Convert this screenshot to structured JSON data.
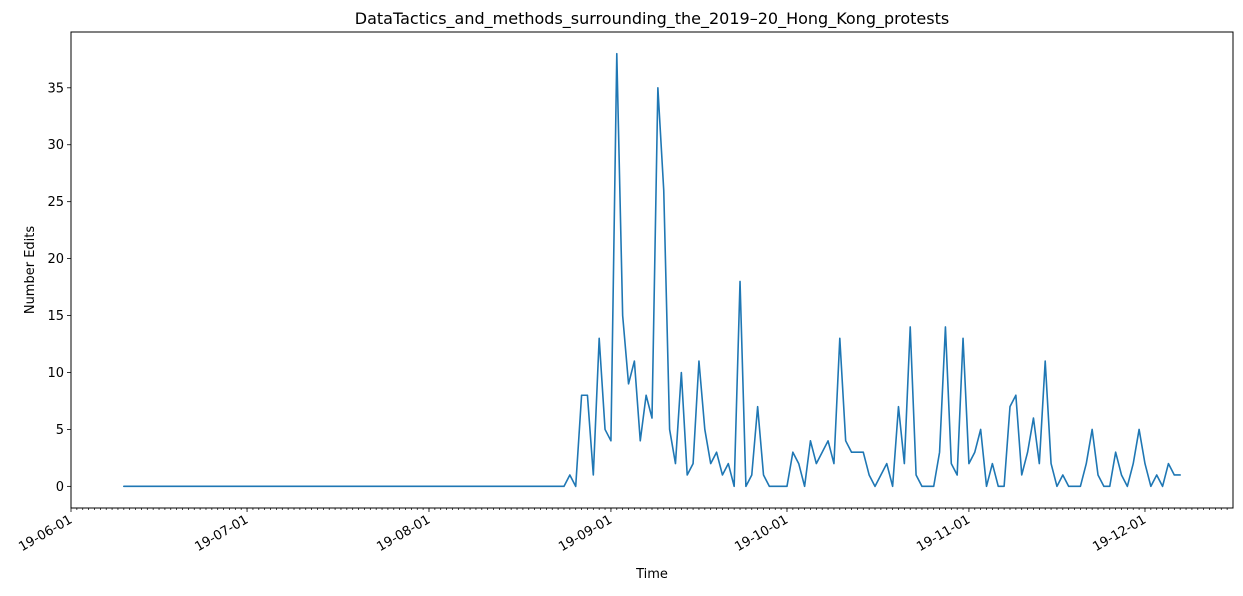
{
  "chart_data": {
    "type": "line",
    "title": "DataTactics_and_methods_surrounding_the_2019–20_Hong_Kong_protests",
    "xlabel": "Time",
    "ylabel": "Number Edits",
    "x_ticks": [
      "19-06-01",
      "19-07-01",
      "19-08-01",
      "19-09-01",
      "19-10-01",
      "19-11-01",
      "19-12-01"
    ],
    "y_ticks": [
      0,
      5,
      10,
      15,
      20,
      25,
      30,
      35
    ],
    "xlim": [
      "2019-06-01",
      "2019-12-16"
    ],
    "ylim": [
      -1.9,
      39.9
    ],
    "grid": false,
    "legend": "none",
    "series": [
      {
        "color": "#1f77b4",
        "points": [
          [
            "2019-06-10",
            0
          ],
          [
            "2019-08-24",
            0
          ],
          [
            "2019-08-25",
            1
          ],
          [
            "2019-08-26",
            0
          ],
          [
            "2019-08-27",
            8
          ],
          [
            "2019-08-28",
            8
          ],
          [
            "2019-08-29",
            1
          ],
          [
            "2019-08-30",
            13
          ],
          [
            "2019-08-31",
            5
          ],
          [
            "2019-09-01",
            4
          ],
          [
            "2019-09-02",
            38
          ],
          [
            "2019-09-03",
            15
          ],
          [
            "2019-09-04",
            9
          ],
          [
            "2019-09-05",
            11
          ],
          [
            "2019-09-06",
            4
          ],
          [
            "2019-09-07",
            8
          ],
          [
            "2019-09-08",
            6
          ],
          [
            "2019-09-09",
            35
          ],
          [
            "2019-09-10",
            26
          ],
          [
            "2019-09-11",
            5
          ],
          [
            "2019-09-12",
            2
          ],
          [
            "2019-09-13",
            10
          ],
          [
            "2019-09-14",
            1
          ],
          [
            "2019-09-15",
            2
          ],
          [
            "2019-09-16",
            11
          ],
          [
            "2019-09-17",
            5
          ],
          [
            "2019-09-18",
            2
          ],
          [
            "2019-09-19",
            3
          ],
          [
            "2019-09-20",
            1
          ],
          [
            "2019-09-21",
            2
          ],
          [
            "2019-09-22",
            0
          ],
          [
            "2019-09-23",
            18
          ],
          [
            "2019-09-24",
            0
          ],
          [
            "2019-09-25",
            1
          ],
          [
            "2019-09-26",
            7
          ],
          [
            "2019-09-27",
            1
          ],
          [
            "2019-09-28",
            0
          ],
          [
            "2019-10-01",
            0
          ],
          [
            "2019-10-02",
            3
          ],
          [
            "2019-10-03",
            2
          ],
          [
            "2019-10-04",
            0
          ],
          [
            "2019-10-05",
            4
          ],
          [
            "2019-10-06",
            2
          ],
          [
            "2019-10-07",
            3
          ],
          [
            "2019-10-08",
            4
          ],
          [
            "2019-10-09",
            2
          ],
          [
            "2019-10-10",
            13
          ],
          [
            "2019-10-11",
            4
          ],
          [
            "2019-10-12",
            3
          ],
          [
            "2019-10-13",
            3
          ],
          [
            "2019-10-14",
            3
          ],
          [
            "2019-10-15",
            1
          ],
          [
            "2019-10-16",
            0
          ],
          [
            "2019-10-17",
            1
          ],
          [
            "2019-10-18",
            2
          ],
          [
            "2019-10-19",
            0
          ],
          [
            "2019-10-20",
            7
          ],
          [
            "2019-10-21",
            2
          ],
          [
            "2019-10-22",
            14
          ],
          [
            "2019-10-23",
            1
          ],
          [
            "2019-10-24",
            0
          ],
          [
            "2019-10-26",
            0
          ],
          [
            "2019-10-27",
            3
          ],
          [
            "2019-10-28",
            14
          ],
          [
            "2019-10-29",
            2
          ],
          [
            "2019-10-30",
            1
          ],
          [
            "2019-10-31",
            13
          ],
          [
            "2019-11-01",
            2
          ],
          [
            "2019-11-02",
            3
          ],
          [
            "2019-11-03",
            5
          ],
          [
            "2019-11-04",
            0
          ],
          [
            "2019-11-05",
            2
          ],
          [
            "2019-11-06",
            0
          ],
          [
            "2019-11-07",
            0
          ],
          [
            "2019-11-08",
            7
          ],
          [
            "2019-11-09",
            8
          ],
          [
            "2019-11-10",
            1
          ],
          [
            "2019-11-11",
            3
          ],
          [
            "2019-11-12",
            6
          ],
          [
            "2019-11-13",
            2
          ],
          [
            "2019-11-14",
            11
          ],
          [
            "2019-11-15",
            2
          ],
          [
            "2019-11-16",
            0
          ],
          [
            "2019-11-17",
            1
          ],
          [
            "2019-11-18",
            0
          ],
          [
            "2019-11-20",
            0
          ],
          [
            "2019-11-21",
            2
          ],
          [
            "2019-11-22",
            5
          ],
          [
            "2019-11-23",
            1
          ],
          [
            "2019-11-24",
            0
          ],
          [
            "2019-11-25",
            0
          ],
          [
            "2019-11-26",
            3
          ],
          [
            "2019-11-27",
            1
          ],
          [
            "2019-11-28",
            0
          ],
          [
            "2019-11-29",
            2
          ],
          [
            "2019-11-30",
            5
          ],
          [
            "2019-12-01",
            2
          ],
          [
            "2019-12-02",
            0
          ],
          [
            "2019-12-03",
            1
          ],
          [
            "2019-12-04",
            0
          ],
          [
            "2019-12-05",
            2
          ],
          [
            "2019-12-06",
            1
          ],
          [
            "2019-12-07",
            1
          ]
        ]
      }
    ]
  }
}
